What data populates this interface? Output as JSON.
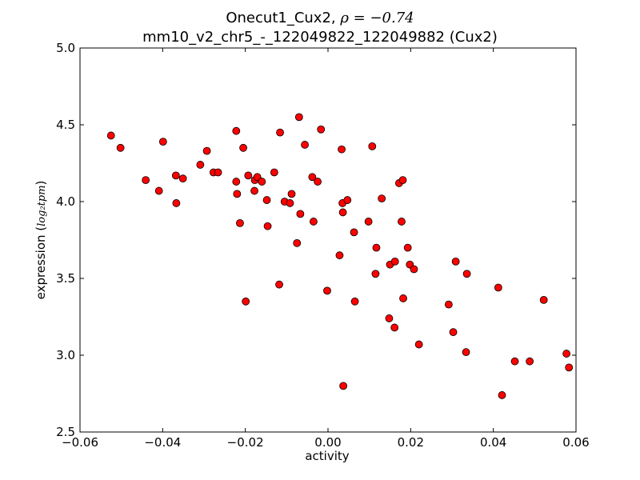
{
  "chart_data": {
    "type": "scatter",
    "title_prefix": "Onecut1_Cux2, ",
    "title_rho": "ρ = −0.74",
    "subtitle": "mm10_v2_chr5_-_122049822_122049882 (Cux2)",
    "xlabel": "activity",
    "ylabel_prefix": "expression (",
    "ylabel_math": "log₂tpm",
    "ylabel_suffix": ")",
    "xlim": [
      -0.06,
      0.06
    ],
    "ylim": [
      2.5,
      5.0
    ],
    "xticks": [
      -0.06,
      -0.04,
      -0.02,
      0.0,
      0.02,
      0.04,
      0.06
    ],
    "xtick_labels": [
      "−0.06",
      "−0.04",
      "−0.02",
      "0.00",
      "0.02",
      "0.04",
      "0.06"
    ],
    "yticks": [
      2.5,
      3.0,
      3.5,
      4.0,
      4.5,
      5.0
    ],
    "ytick_labels": [
      "2.5",
      "3.0",
      "3.5",
      "4.0",
      "4.5",
      "5.0"
    ],
    "grid": false,
    "marker_color": "#ff0000",
    "marker_edge": "#000000",
    "points": [
      {
        "x": -0.0525,
        "y": 4.43
      },
      {
        "x": -0.0502,
        "y": 4.35
      },
      {
        "x": -0.0441,
        "y": 4.14
      },
      {
        "x": -0.0409,
        "y": 4.07
      },
      {
        "x": -0.0399,
        "y": 4.39
      },
      {
        "x": -0.0368,
        "y": 4.17
      },
      {
        "x": -0.0367,
        "y": 3.99
      },
      {
        "x": -0.0351,
        "y": 4.15
      },
      {
        "x": -0.0309,
        "y": 4.24
      },
      {
        "x": -0.0293,
        "y": 4.33
      },
      {
        "x": -0.0277,
        "y": 4.19
      },
      {
        "x": -0.0266,
        "y": 4.19
      },
      {
        "x": -0.0222,
        "y": 4.46
      },
      {
        "x": -0.0222,
        "y": 4.13
      },
      {
        "x": -0.022,
        "y": 4.05
      },
      {
        "x": -0.0213,
        "y": 3.86
      },
      {
        "x": -0.0205,
        "y": 4.35
      },
      {
        "x": -0.0199,
        "y": 3.35
      },
      {
        "x": -0.0193,
        "y": 4.17
      },
      {
        "x": -0.0178,
        "y": 4.07
      },
      {
        "x": -0.0177,
        "y": 4.14
      },
      {
        "x": -0.0171,
        "y": 4.16
      },
      {
        "x": -0.016,
        "y": 4.13
      },
      {
        "x": -0.0148,
        "y": 4.01
      },
      {
        "x": -0.0146,
        "y": 3.84
      },
      {
        "x": -0.013,
        "y": 4.19
      },
      {
        "x": -0.0118,
        "y": 3.46
      },
      {
        "x": -0.0116,
        "y": 4.45
      },
      {
        "x": -0.0105,
        "y": 4.0
      },
      {
        "x": -0.0092,
        "y": 3.99
      },
      {
        "x": -0.0088,
        "y": 4.05
      },
      {
        "x": -0.0075,
        "y": 3.73
      },
      {
        "x": -0.007,
        "y": 4.55
      },
      {
        "x": -0.0067,
        "y": 3.92
      },
      {
        "x": -0.0056,
        "y": 4.37
      },
      {
        "x": -0.0038,
        "y": 4.16
      },
      {
        "x": -0.0035,
        "y": 3.87
      },
      {
        "x": -0.0025,
        "y": 4.13
      },
      {
        "x": -0.0017,
        "y": 4.47
      },
      {
        "x": -0.0002,
        "y": 3.42
      },
      {
        "x": 0.0028,
        "y": 3.65
      },
      {
        "x": 0.0033,
        "y": 4.34
      },
      {
        "x": 0.0035,
        "y": 3.99
      },
      {
        "x": 0.0036,
        "y": 3.93
      },
      {
        "x": 0.0037,
        "y": 2.8
      },
      {
        "x": 0.0047,
        "y": 4.01
      },
      {
        "x": 0.0063,
        "y": 3.8
      },
      {
        "x": 0.0065,
        "y": 3.35
      },
      {
        "x": 0.0098,
        "y": 3.87
      },
      {
        "x": 0.0107,
        "y": 4.36
      },
      {
        "x": 0.0115,
        "y": 3.53
      },
      {
        "x": 0.0117,
        "y": 3.7
      },
      {
        "x": 0.013,
        "y": 4.02
      },
      {
        "x": 0.0148,
        "y": 3.24
      },
      {
        "x": 0.015,
        "y": 3.59
      },
      {
        "x": 0.0161,
        "y": 3.18
      },
      {
        "x": 0.0162,
        "y": 3.61
      },
      {
        "x": 0.0172,
        "y": 4.12
      },
      {
        "x": 0.0178,
        "y": 3.87
      },
      {
        "x": 0.0181,
        "y": 4.14
      },
      {
        "x": 0.0182,
        "y": 3.37
      },
      {
        "x": 0.0193,
        "y": 3.7
      },
      {
        "x": 0.0198,
        "y": 3.59
      },
      {
        "x": 0.0208,
        "y": 3.56
      },
      {
        "x": 0.022,
        "y": 3.07
      },
      {
        "x": 0.0292,
        "y": 3.33
      },
      {
        "x": 0.0303,
        "y": 3.15
      },
      {
        "x": 0.0309,
        "y": 3.61
      },
      {
        "x": 0.0334,
        "y": 3.02
      },
      {
        "x": 0.0336,
        "y": 3.53
      },
      {
        "x": 0.0412,
        "y": 3.44
      },
      {
        "x": 0.0421,
        "y": 2.74
      },
      {
        "x": 0.0452,
        "y": 2.96
      },
      {
        "x": 0.0488,
        "y": 2.96
      },
      {
        "x": 0.0522,
        "y": 3.36
      },
      {
        "x": 0.0577,
        "y": 3.01
      },
      {
        "x": 0.0583,
        "y": 2.92
      }
    ]
  }
}
